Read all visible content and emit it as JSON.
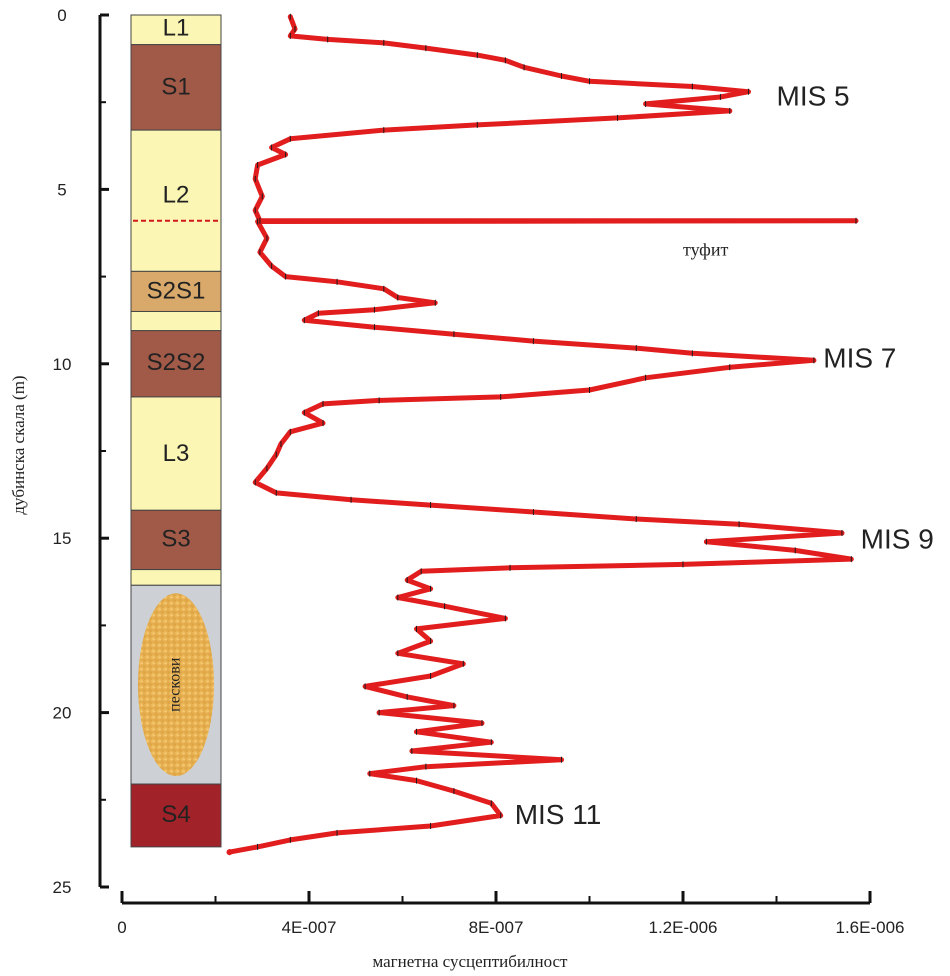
{
  "chart_data": {
    "type": "line",
    "xlabel": "магнетна сусцептибилност",
    "ylabel": "дубинска скала (m)",
    "xlim": [
      0,
      1.6e-06
    ],
    "ylim": [
      25,
      0
    ],
    "x_ticks": [
      "0",
      "4E-007",
      "8E-007",
      "1.2E-006",
      "1.6E-006"
    ],
    "x_tick_values": [
      0,
      4e-07,
      8e-07,
      1.2e-06,
      1.6e-06
    ],
    "y_ticks": [
      "0",
      "5",
      "10",
      "15",
      "20",
      "25"
    ],
    "y_tick_values": [
      0,
      5,
      10,
      15,
      20,
      25
    ],
    "line_color": "#e21d1d",
    "series": [
      {
        "points": [
          [
            3.6e-07,
            0.05
          ],
          [
            3.7e-07,
            0.4
          ],
          [
            3.6e-07,
            0.6
          ],
          [
            4.4e-07,
            0.7
          ],
          [
            5.6e-07,
            0.8
          ],
          [
            6.5e-07,
            0.95
          ],
          [
            7.6e-07,
            1.15
          ],
          [
            8.2e-07,
            1.3
          ],
          [
            8.6e-07,
            1.5
          ],
          [
            9.4e-07,
            1.75
          ],
          [
            1e-06,
            1.9
          ],
          [
            1.22e-06,
            2.05
          ],
          [
            1.34e-06,
            2.2
          ],
          [
            1.28e-06,
            2.35
          ],
          [
            1.12e-06,
            2.55
          ],
          [
            1.3e-06,
            2.75
          ],
          [
            1.06e-06,
            2.95
          ],
          [
            7.6e-07,
            3.15
          ],
          [
            5.6e-07,
            3.3
          ],
          [
            3.6e-07,
            3.55
          ],
          [
            3.2e-07,
            3.8
          ],
          [
            3.5e-07,
            4.0
          ],
          [
            2.9e-07,
            4.3
          ],
          [
            2.85e-07,
            4.7
          ],
          [
            3e-07,
            5.2
          ],
          [
            2.85e-07,
            5.6
          ],
          [
            2.95e-07,
            5.9
          ],
          [
            1.57e-06,
            5.9
          ],
          [
            2.9e-07,
            5.92
          ],
          [
            3.1e-07,
            6.4
          ],
          [
            2.95e-07,
            6.8
          ],
          [
            3.2e-07,
            7.2
          ],
          [
            3.5e-07,
            7.5
          ],
          [
            4.6e-07,
            7.65
          ],
          [
            5.6e-07,
            7.85
          ],
          [
            5.9e-07,
            8.1
          ],
          [
            6.7e-07,
            8.25
          ],
          [
            5.4e-07,
            8.45
          ],
          [
            4.2e-07,
            8.55
          ],
          [
            3.9e-07,
            8.75
          ],
          [
            5.4e-07,
            8.95
          ],
          [
            7.1e-07,
            9.15
          ],
          [
            8.8e-07,
            9.35
          ],
          [
            1.1e-06,
            9.55
          ],
          [
            1.22e-06,
            9.7
          ],
          [
            1.48e-06,
            9.9
          ],
          [
            1.3e-06,
            10.1
          ],
          [
            1.12e-06,
            10.4
          ],
          [
            1e-06,
            10.75
          ],
          [
            8.1e-07,
            10.95
          ],
          [
            5.5e-07,
            11.05
          ],
          [
            4.3e-07,
            11.15
          ],
          [
            3.9e-07,
            11.4
          ],
          [
            4.3e-07,
            11.7
          ],
          [
            3.6e-07,
            11.95
          ],
          [
            3.4e-07,
            12.3
          ],
          [
            3.3e-07,
            12.6
          ],
          [
            3.1e-07,
            13.0
          ],
          [
            2.85e-07,
            13.4
          ],
          [
            3.3e-07,
            13.7
          ],
          [
            4.9e-07,
            13.9
          ],
          [
            6.6e-07,
            14.05
          ],
          [
            8.8e-07,
            14.25
          ],
          [
            1.1e-06,
            14.45
          ],
          [
            1.32e-06,
            14.6
          ],
          [
            1.54e-06,
            14.85
          ],
          [
            1.25e-06,
            15.1
          ],
          [
            1.44e-06,
            15.35
          ],
          [
            1.56e-06,
            15.6
          ],
          [
            1.2e-06,
            15.75
          ],
          [
            8.3e-07,
            15.85
          ],
          [
            6.4e-07,
            15.95
          ],
          [
            6.1e-07,
            16.2
          ],
          [
            6.6e-07,
            16.45
          ],
          [
            5.9e-07,
            16.7
          ],
          [
            6.9e-07,
            16.95
          ],
          [
            8.2e-07,
            17.3
          ],
          [
            6.3e-07,
            17.6
          ],
          [
            6.6e-07,
            17.95
          ],
          [
            5.9e-07,
            18.3
          ],
          [
            7.3e-07,
            18.6
          ],
          [
            6.6e-07,
            18.95
          ],
          [
            5.2e-07,
            19.25
          ],
          [
            6.1e-07,
            19.55
          ],
          [
            7.1e-07,
            19.8
          ],
          [
            5.5e-07,
            20.0
          ],
          [
            7.7e-07,
            20.3
          ],
          [
            6.3e-07,
            20.55
          ],
          [
            7.9e-07,
            20.85
          ],
          [
            6.2e-07,
            21.1
          ],
          [
            9.4e-07,
            21.35
          ],
          [
            6.5e-07,
            21.55
          ],
          [
            5.3e-07,
            21.75
          ],
          [
            6.3e-07,
            21.95
          ],
          [
            7.1e-07,
            22.25
          ],
          [
            7.9e-07,
            22.6
          ],
          [
            8.1e-07,
            22.95
          ],
          [
            6.6e-07,
            23.25
          ],
          [
            4.6e-07,
            23.45
          ],
          [
            3.6e-07,
            23.65
          ],
          [
            2.9e-07,
            23.85
          ],
          [
            2.3e-07,
            24.0
          ]
        ]
      }
    ],
    "layers": [
      {
        "label": "L1",
        "top": 0.0,
        "bottom": 0.85,
        "color": "#fbf6b4",
        "label_depth": 0.4
      },
      {
        "label": "S1",
        "top": 0.85,
        "bottom": 3.3,
        "color": "#a25a48",
        "label_depth": 2.1
      },
      {
        "label": "L2",
        "top": 3.3,
        "bottom": 7.35,
        "color": "#fbf6b4",
        "label_depth": 5.2
      },
      {
        "label": "S2S1",
        "top": 7.35,
        "bottom": 8.5,
        "color": "#d8a96a",
        "label_depth": 7.95
      },
      {
        "label": "",
        "top": 8.5,
        "bottom": 9.05,
        "color": "#fbf6b4",
        "label_depth": 8.8
      },
      {
        "label": "S2S2",
        "top": 9.05,
        "bottom": 10.95,
        "color": "#a25a48",
        "label_depth": 10.0
      },
      {
        "label": "L3",
        "top": 10.95,
        "bottom": 14.2,
        "color": "#fbf6b4",
        "label_depth": 12.6
      },
      {
        "label": "S3",
        "top": 14.2,
        "bottom": 15.9,
        "color": "#a25a48",
        "label_depth": 15.05
      },
      {
        "label": "",
        "top": 15.9,
        "bottom": 16.35,
        "color": "#fbf6b4",
        "label_depth": 16.1
      },
      {
        "label": "",
        "top": 16.35,
        "bottom": 22.05,
        "color": "#cdd1d6",
        "label_depth": 19.2
      },
      {
        "label": "S4",
        "top": 22.05,
        "bottom": 23.85,
        "color": "#a12228",
        "label_depth": 22.95
      }
    ],
    "sand_label": "пескови",
    "tuff_line_depth": 5.9,
    "annotations": [
      {
        "text": "MIS 5",
        "x": 1.4e-06,
        "y": 2.6
      },
      {
        "text": "MIS 7",
        "x": 1.5e-06,
        "y": 10.1
      },
      {
        "text": "MIS 9",
        "x": 1.58e-06,
        "y": 15.3
      },
      {
        "text": "MIS 11",
        "x": 8.4e-07,
        "y": 23.2
      },
      {
        "text": "туфит",
        "x": 1.2e-06,
        "y": 6.9
      }
    ]
  }
}
